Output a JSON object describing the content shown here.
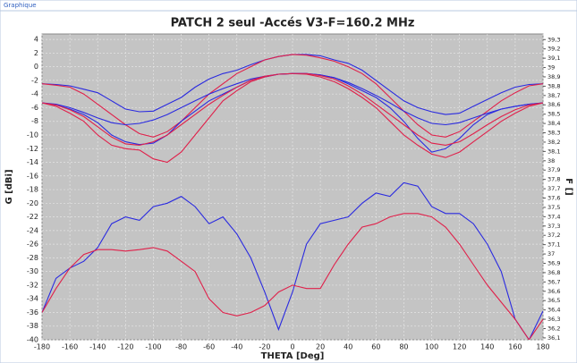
{
  "window_title": "Graphique",
  "chart_data": {
    "type": "line",
    "title": "PATCH 2 seul -Accés V3-F=160.2 MHz",
    "xlabel": "THETA [Deg]",
    "ylabel": "G [dBi]",
    "y2label": "F []",
    "x": [
      -180,
      -170,
      -160,
      -150,
      -140,
      -130,
      -120,
      -110,
      -100,
      -90,
      -80,
      -70,
      -60,
      -50,
      -40,
      -30,
      -20,
      -10,
      0,
      10,
      20,
      30,
      40,
      50,
      60,
      70,
      80,
      90,
      100,
      110,
      120,
      130,
      140,
      150,
      160,
      170,
      180
    ],
    "xlim": [
      -180,
      180
    ],
    "xticks": [
      -180,
      -160,
      -140,
      -120,
      -100,
      -80,
      -60,
      -40,
      -20,
      0,
      20,
      40,
      60,
      80,
      100,
      120,
      140,
      160,
      180
    ],
    "ylim": [
      -40,
      4.8
    ],
    "yticks": [
      -40,
      -38,
      -36,
      -34,
      -32,
      -30,
      -28,
      -26,
      -24,
      -22,
      -20,
      -18,
      -16,
      -14,
      -12,
      -10,
      -8,
      -6,
      -4,
      -2,
      0,
      2,
      4
    ],
    "y2lim": [
      36.08,
      39.36
    ],
    "y2ticks": [
      {
        "value": 36.1,
        "label": "36,1"
      },
      {
        "value": 36.2,
        "label": "36,2"
      },
      {
        "value": 36.3,
        "label": "36,3"
      },
      {
        "value": 36.4,
        "label": "36,4"
      },
      {
        "value": 36.5,
        "label": "36,5"
      },
      {
        "value": 36.6,
        "label": "36,6"
      },
      {
        "value": 36.7,
        "label": "36,7"
      },
      {
        "value": 36.8,
        "label": "36,8"
      },
      {
        "value": 36.9,
        "label": "36,9"
      },
      37,
      {
        "value": 37.1,
        "label": "37,1"
      },
      {
        "value": 37.2,
        "label": "37,2"
      },
      {
        "value": 37.3,
        "label": "37,3"
      },
      {
        "value": 37.4,
        "label": "37,4"
      },
      {
        "value": 37.5,
        "label": "37,5"
      },
      {
        "value": 37.6,
        "label": "37,6"
      },
      {
        "value": 37.7,
        "label": "37,7"
      },
      {
        "value": 37.8,
        "label": "37,8"
      },
      {
        "value": 37.9,
        "label": "37,9"
      },
      38,
      {
        "value": 38.1,
        "label": "38,1"
      },
      {
        "value": 38.2,
        "label": "38,2"
      },
      {
        "value": 38.3,
        "label": "38,3"
      },
      {
        "value": 38.4,
        "label": "38,4"
      },
      {
        "value": 38.5,
        "label": "38,5"
      },
      {
        "value": 38.6,
        "label": "38,6"
      },
      {
        "value": 38.7,
        "label": "38,7"
      },
      {
        "value": 38.8,
        "label": "38,8"
      },
      {
        "value": 38.9,
        "label": "38,9"
      },
      39,
      {
        "value": 39.1,
        "label": "39,1"
      },
      {
        "value": 39.2,
        "label": "39,2"
      },
      {
        "value": 39.3,
        "label": "39,3"
      }
    ],
    "grid": true,
    "series": [
      {
        "color": "#2a2ae0",
        "values": [
          -2.5,
          -2.6,
          -2.8,
          -3.3,
          -3.8,
          -5,
          -6.2,
          -6.6,
          -6.5,
          -5.5,
          -4.5,
          -3,
          -1.8,
          -1,
          -0.5,
          0.3,
          1,
          1.5,
          1.8,
          1.8,
          1.6,
          1,
          0.5,
          -0.5,
          -2,
          -3.5,
          -5,
          -6,
          -6.6,
          -7,
          -6.8,
          -5.8,
          -4.8,
          -3.8,
          -3,
          -2.6,
          -2.5
        ]
      },
      {
        "color": "#e0204a",
        "values": [
          -2.5,
          -2.7,
          -3,
          -4,
          -5.5,
          -7,
          -8.5,
          -9.8,
          -10.3,
          -9.5,
          -8,
          -6,
          -4,
          -2.5,
          -1,
          0,
          1,
          1.5,
          1.8,
          1.7,
          1.3,
          0.8,
          0,
          -1,
          -2.5,
          -4.5,
          -6.5,
          -8.5,
          -10,
          -10.3,
          -9.5,
          -8,
          -6.5,
          -5,
          -3.8,
          -2.8,
          -2.5
        ]
      },
      {
        "color": "#2a2ae0",
        "values": [
          -5.3,
          -5.6,
          -6.2,
          -7,
          -8.2,
          -10,
          -11,
          -11.4,
          -11.2,
          -10,
          -8,
          -6.5,
          -5,
          -4,
          -3,
          -2,
          -1.5,
          -1.1,
          -1,
          -1,
          -1.2,
          -1.6,
          -2.5,
          -3.5,
          -4.5,
          -6,
          -8,
          -10.5,
          -12.5,
          -12,
          -10.5,
          -8.5,
          -7,
          -6.2,
          -5.8,
          -5.5,
          -5.3
        ]
      },
      {
        "color": "#e0204a",
        "values": [
          -5.3,
          -5.8,
          -6.8,
          -8,
          -10,
          -11.5,
          -12,
          -12.2,
          -13.5,
          -14,
          -12.5,
          -10,
          -7.5,
          -5,
          -3.5,
          -2.2,
          -1.5,
          -1.1,
          -1,
          -1.1,
          -1.5,
          -2.2,
          -3.2,
          -4.5,
          -6,
          -8,
          -10,
          -11.5,
          -12.8,
          -13.3,
          -12.5,
          -11,
          -9.5,
          -8,
          -6.8,
          -5.8,
          -5.3
        ]
      },
      {
        "color": "#2a2ae0",
        "values": [
          -5.3,
          -5.5,
          -6,
          -6.7,
          -7.5,
          -8.2,
          -8.5,
          -8.3,
          -7.8,
          -7,
          -6,
          -5,
          -4,
          -3.2,
          -2.5,
          -1.8,
          -1.4,
          -1.1,
          -1,
          -1,
          -1.2,
          -1.6,
          -2.3,
          -3.2,
          -4.2,
          -5.3,
          -6.5,
          -7.5,
          -8.3,
          -8.5,
          -8.2,
          -7.5,
          -6.8,
          -6.2,
          -5.8,
          -5.5,
          -5.3
        ]
      },
      {
        "color": "#e0204a",
        "values": [
          -5.3,
          -5.6,
          -6.3,
          -7.3,
          -8.8,
          -10.3,
          -11.3,
          -11.5,
          -11,
          -10,
          -8.5,
          -7,
          -5.5,
          -4.2,
          -3,
          -2,
          -1.4,
          -1.1,
          -1,
          -1,
          -1.3,
          -1.8,
          -2.8,
          -4,
          -5.5,
          -7,
          -8.5,
          -10,
          -11.2,
          -11.5,
          -11,
          -9.8,
          -8.5,
          -7.3,
          -6.3,
          -5.6,
          -5.3
        ]
      },
      {
        "color": "#2a2ae0",
        "values": [
          -36,
          -31,
          -29.5,
          -28.5,
          -26.5,
          -23,
          -22,
          -22.5,
          -20.5,
          -20,
          -19,
          -20.5,
          -23,
          -22,
          -24.5,
          -28,
          -33,
          -38.5,
          -33,
          -26,
          -23,
          -22.5,
          -22,
          -20,
          -18.5,
          -19,
          -17,
          -17.5,
          -20.5,
          -21.5,
          -21.5,
          -23,
          -26,
          -30,
          -37,
          -40,
          -35.8
        ]
      },
      {
        "color": "#e0204a",
        "values": [
          -36,
          -32.5,
          -29.5,
          -27.5,
          -26.8,
          -26.8,
          -27,
          -26.8,
          -26.5,
          -27,
          -28.5,
          -30,
          -34,
          -36,
          -36.5,
          -36,
          -35,
          -33,
          -32,
          -32.5,
          -32.5,
          -29,
          -26,
          -23.5,
          -23,
          -22,
          -21.5,
          -21.5,
          -22,
          -23.5,
          -26,
          -29,
          -32,
          -34.5,
          -37,
          -40,
          -37
        ]
      }
    ]
  }
}
